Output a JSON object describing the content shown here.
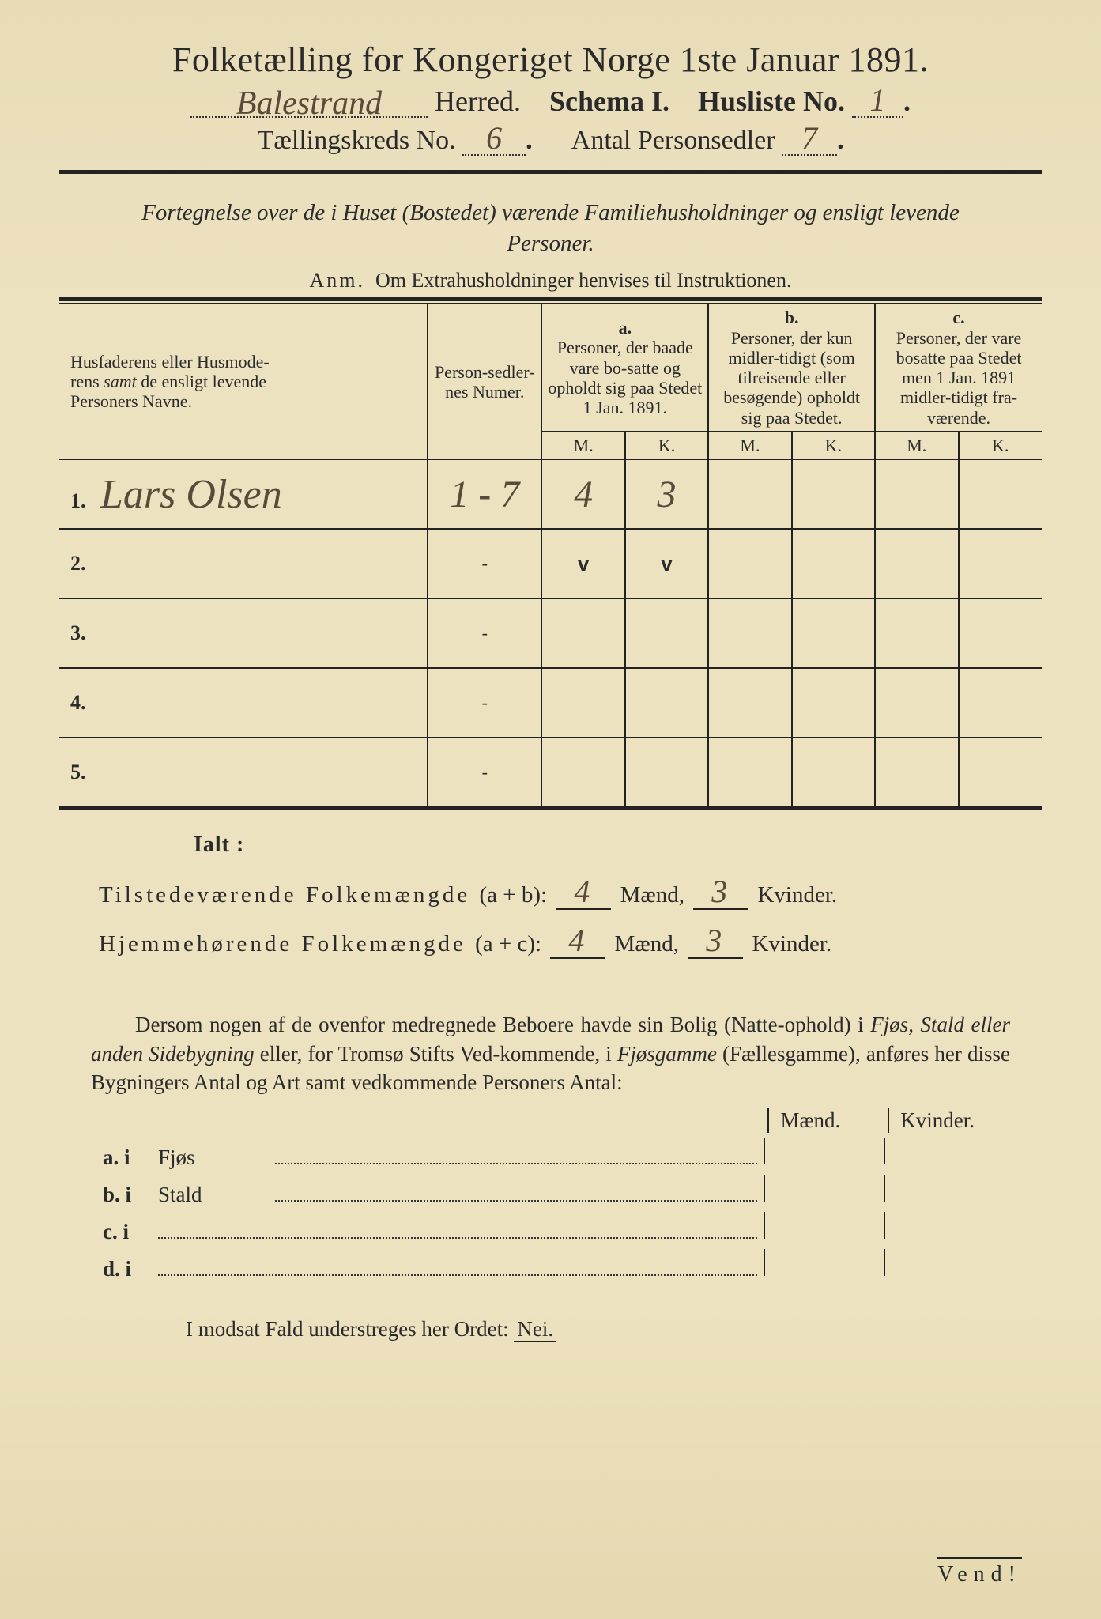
{
  "header": {
    "title": "Folketælling for Kongeriget Norge 1ste Januar 1891.",
    "herred_handwritten": "Balestrand",
    "herred_label": "Herred.",
    "schema_label": "Schema I.",
    "husliste_label": "Husliste No.",
    "husliste_no": "1",
    "kreds_label": "Tællingskreds No.",
    "kreds_no": "6",
    "antal_label": "Antal Personsedler",
    "antal_no": "7"
  },
  "subtitle": "Fortegnelse over de i Huset (Bostedet) værende Familiehusholdninger og ensligt levende Personer.",
  "anm_label": "Anm.",
  "anm_text": "Om Extrahusholdninger henvises til Instruktionen.",
  "columns": {
    "name_line1": "Husfaderens eller Husmode-",
    "name_line2_a": "rens",
    "name_line2_samt": "samt",
    "name_line2_b": "de ensligt levende",
    "name_line3": "Personers Navne.",
    "sedler": "Person-sedler-nes Numer.",
    "a_label": "a.",
    "a_text": "Personer, der baade vare bo-satte og opholdt sig paa Stedet 1 Jan. 1891.",
    "b_label": "b.",
    "b_text": "Personer, der kun midler-tidigt (som tilreisende eller besøgende) opholdt sig paa Stedet.",
    "c_label": "c.",
    "c_text": "Personer, der vare bosatte paa Stedet men 1 Jan. 1891 midler-tidigt fra-værende.",
    "m": "M.",
    "k": "K."
  },
  "rows": [
    {
      "n": "1.",
      "name": "Lars Olsen",
      "sedler": "1 - 7",
      "a_m": "4",
      "a_k": "3",
      "b_m": "",
      "b_k": "",
      "c_m": "",
      "c_k": ""
    },
    {
      "n": "2.",
      "name": "",
      "sedler": "-",
      "a_m": "v",
      "a_k": "v",
      "b_m": "",
      "b_k": "",
      "c_m": "",
      "c_k": ""
    },
    {
      "n": "3.",
      "name": "",
      "sedler": "-",
      "a_m": "",
      "a_k": "",
      "b_m": "",
      "b_k": "",
      "c_m": "",
      "c_k": ""
    },
    {
      "n": "4.",
      "name": "",
      "sedler": "-",
      "a_m": "",
      "a_k": "",
      "b_m": "",
      "b_k": "",
      "c_m": "",
      "c_k": ""
    },
    {
      "n": "5.",
      "name": "",
      "sedler": "-",
      "a_m": "",
      "a_k": "",
      "b_m": "",
      "b_k": "",
      "c_m": "",
      "c_k": ""
    }
  ],
  "ialt": "Ialt :",
  "totals": {
    "tilstede_label": "Tilstedeværende Folkemængde",
    "tilstede_formula": "(a + b):",
    "tilstede_m": "4",
    "tilstede_k": "3",
    "hjemme_label": "Hjemmehørende Folkemængde",
    "hjemme_formula": "(a + c):",
    "hjemme_m": "4",
    "hjemme_k": "3",
    "maend": "Mænd,",
    "kvinder": "Kvinder."
  },
  "para": {
    "t1": "Dersom nogen af de ovenfor medregnede Beboere havde sin Bolig (Natte-ophold) i ",
    "i1": "Fjøs, Stald eller anden Sidebygning",
    "t2": " eller, for Tromsø Stifts Ved-kommende, i ",
    "i2": "Fjøsgamme",
    "t3": " (Fællesgamme), anføres her disse Bygningers Antal og Art samt vedkommende Personers Antal:"
  },
  "mk": {
    "maend": "Mænd.",
    "kvinder": "Kvinder."
  },
  "sublist": {
    "a": "a.  i",
    "a_txt": "Fjøs",
    "b": "b.  i",
    "b_txt": "Stald",
    "c": "c.  i",
    "c_txt": "",
    "d": "d.  i",
    "d_txt": ""
  },
  "modsat": "I modsat Fald understreges her Ordet:",
  "nei": "Nei.",
  "vend": "Vend!"
}
